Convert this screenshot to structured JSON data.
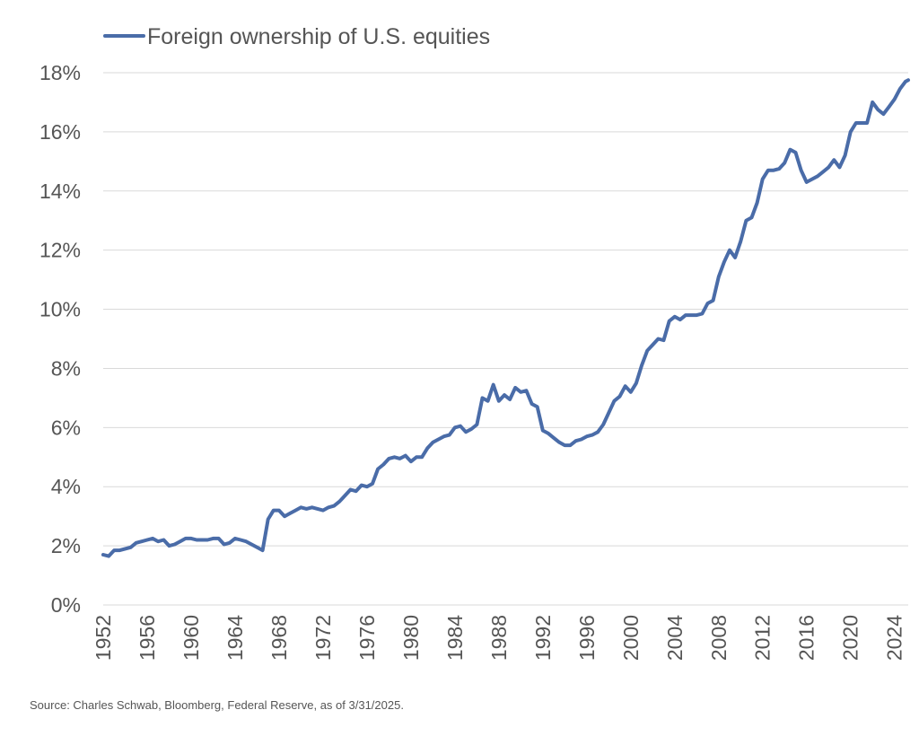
{
  "colors": {
    "line": "#4a6ca8",
    "grid": "#d9d9d9",
    "text": "#555555",
    "background": "#ffffff"
  },
  "source": "Source: Charles Schwab, Bloomberg, Federal Reserve, as of 3/31/2025.",
  "chart_data": {
    "type": "line",
    "title": "",
    "xlabel": "",
    "ylabel": "",
    "legend": [
      "Foreign ownership of U.S. equities"
    ],
    "legend_position": "top-left",
    "grid": "horizontal",
    "ylim": [
      0,
      18
    ],
    "xlim": [
      1952,
      2025.25
    ],
    "y_ticks": [
      0,
      2,
      4,
      6,
      8,
      10,
      12,
      14,
      16,
      18
    ],
    "y_tick_labels": [
      "0%",
      "2%",
      "4%",
      "6%",
      "8%",
      "10%",
      "12%",
      "14%",
      "16%",
      "18%"
    ],
    "x_ticks": [
      1952,
      1956,
      1960,
      1964,
      1968,
      1972,
      1976,
      1980,
      1984,
      1988,
      1992,
      1996,
      2000,
      2004,
      2008,
      2012,
      2016,
      2020,
      2024
    ],
    "x_tick_labels": [
      "1952",
      "1956",
      "1960",
      "1964",
      "1968",
      "1972",
      "1976",
      "1980",
      "1984",
      "1988",
      "1992",
      "1996",
      "2000",
      "2004",
      "2008",
      "2012",
      "2016",
      "2020",
      "2024"
    ],
    "series": [
      {
        "name": "Foreign ownership of U.S. equities",
        "unit": "percent",
        "x": [
          1952.0,
          1952.5,
          1953.0,
          1953.5,
          1954.0,
          1954.5,
          1955.0,
          1955.5,
          1956.0,
          1956.5,
          1957.0,
          1957.5,
          1958.0,
          1958.5,
          1959.0,
          1959.5,
          1960.0,
          1960.5,
          1961.0,
          1961.5,
          1962.0,
          1962.5,
          1963.0,
          1963.5,
          1964.0,
          1964.5,
          1965.0,
          1965.5,
          1966.0,
          1966.5,
          1967.0,
          1967.5,
          1968.0,
          1968.5,
          1969.0,
          1969.5,
          1970.0,
          1970.5,
          1971.0,
          1971.5,
          1972.0,
          1972.5,
          1973.0,
          1973.5,
          1974.0,
          1974.5,
          1975.0,
          1975.5,
          1976.0,
          1976.5,
          1977.0,
          1977.5,
          1978.0,
          1978.5,
          1979.0,
          1979.5,
          1980.0,
          1980.5,
          1981.0,
          1981.5,
          1982.0,
          1982.5,
          1983.0,
          1983.5,
          1984.0,
          1984.5,
          1985.0,
          1985.5,
          1986.0,
          1986.5,
          1987.0,
          1987.5,
          1988.0,
          1988.5,
          1989.0,
          1989.5,
          1990.0,
          1990.5,
          1991.0,
          1991.5,
          1992.0,
          1992.5,
          1993.0,
          1993.5,
          1994.0,
          1994.5,
          1995.0,
          1995.5,
          1996.0,
          1996.5,
          1997.0,
          1997.5,
          1998.0,
          1998.5,
          1999.0,
          1999.5,
          2000.0,
          2000.5,
          2001.0,
          2001.5,
          2002.0,
          2002.5,
          2003.0,
          2003.5,
          2004.0,
          2004.5,
          2005.0,
          2005.5,
          2006.0,
          2006.5,
          2007.0,
          2007.5,
          2008.0,
          2008.5,
          2009.0,
          2009.5,
          2010.0,
          2010.5,
          2011.0,
          2011.5,
          2012.0,
          2012.5,
          2013.0,
          2013.5,
          2014.0,
          2014.5,
          2015.0,
          2015.5,
          2016.0,
          2016.5,
          2017.0,
          2017.5,
          2018.0,
          2018.5,
          2019.0,
          2019.5,
          2020.0,
          2020.5,
          2021.0,
          2021.5,
          2022.0,
          2022.5,
          2023.0,
          2023.5,
          2024.0,
          2024.5,
          2025.0,
          2025.25
        ],
        "values": [
          1.7,
          1.65,
          1.85,
          1.85,
          1.9,
          1.95,
          2.1,
          2.15,
          2.2,
          2.25,
          2.15,
          2.2,
          2.0,
          2.05,
          2.15,
          2.25,
          2.25,
          2.2,
          2.2,
          2.2,
          2.25,
          2.25,
          2.05,
          2.1,
          2.25,
          2.2,
          2.15,
          2.05,
          1.95,
          1.85,
          2.9,
          3.2,
          3.2,
          3.0,
          3.1,
          3.2,
          3.3,
          3.25,
          3.3,
          3.25,
          3.2,
          3.3,
          3.35,
          3.5,
          3.7,
          3.9,
          3.85,
          4.05,
          4.0,
          4.1,
          4.6,
          4.75,
          4.95,
          5.0,
          4.95,
          5.05,
          4.85,
          5.0,
          5.0,
          5.3,
          5.5,
          5.6,
          5.7,
          5.75,
          6.0,
          6.05,
          5.85,
          5.95,
          6.1,
          7.0,
          6.9,
          7.45,
          6.9,
          7.1,
          6.95,
          7.35,
          7.2,
          7.25,
          6.8,
          6.7,
          5.9,
          5.8,
          5.65,
          5.5,
          5.4,
          5.4,
          5.55,
          5.6,
          5.7,
          5.75,
          5.85,
          6.1,
          6.5,
          6.9,
          7.05,
          7.4,
          7.2,
          7.5,
          8.1,
          8.6,
          8.8,
          9.0,
          8.95,
          9.6,
          9.75,
          9.65,
          9.8,
          9.8,
          9.8,
          9.85,
          10.2,
          10.3,
          11.1,
          11.6,
          12.0,
          11.75,
          12.3,
          13.0,
          13.1,
          13.6,
          14.4,
          14.7,
          14.7,
          14.75,
          14.95,
          15.4,
          15.3,
          14.7,
          14.3,
          14.4,
          14.5,
          14.65,
          14.8,
          15.05,
          14.8,
          15.2,
          16.0,
          16.3,
          16.3,
          16.3,
          17.0,
          16.75,
          16.6,
          16.85,
          17.1,
          17.45,
          17.7,
          17.75
        ]
      }
    ]
  }
}
